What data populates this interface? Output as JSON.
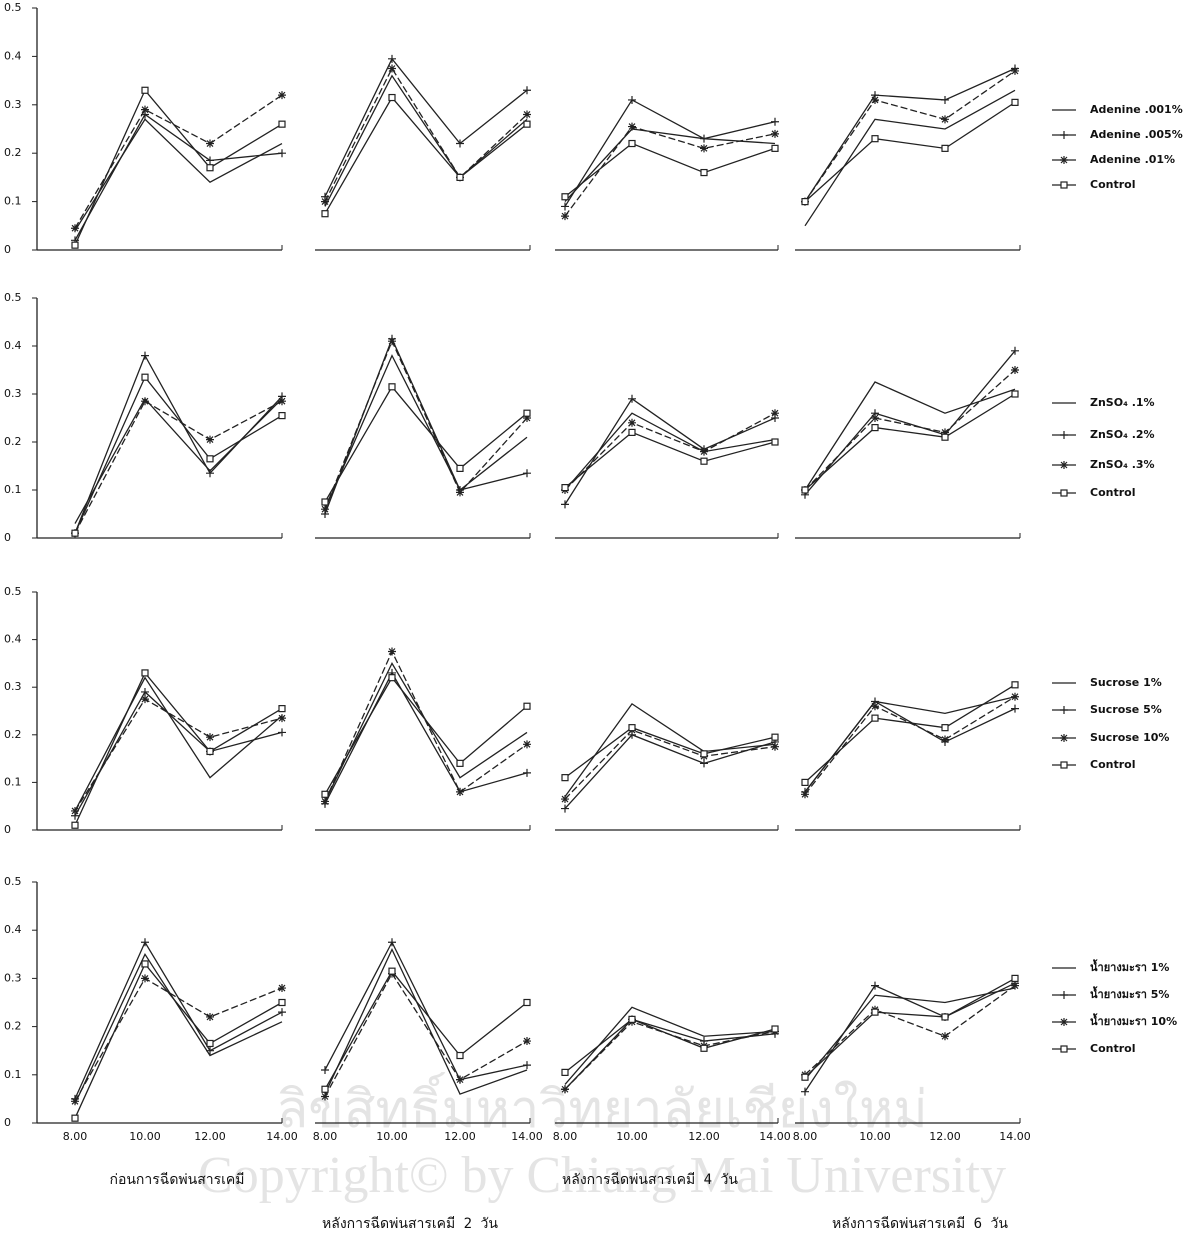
{
  "chart_data": [
    {
      "type": "line",
      "categories": [
        null,
        null,
        null,
        null
      ],
      "ylim": [
        0,
        0.5
      ],
      "yticks": [
        0,
        0.1,
        0.2,
        0.3,
        0.4,
        0.5
      ],
      "series": [
        {
          "color": "#222",
          "marker": "none",
          "values": [
            0.04,
            0.27,
            0.14,
            0.22
          ]
        },
        {
          "color": "#222",
          "marker": "plus",
          "values": [
            0.02,
            0.28,
            0.185,
            0.2
          ]
        },
        {
          "color": "#222",
          "marker": "star",
          "values": [
            0.045,
            0.29,
            0.22,
            0.32
          ]
        },
        {
          "color": "#222",
          "marker": "square",
          "values": [
            0.01,
            0.33,
            0.17,
            0.26
          ]
        }
      ]
    },
    {
      "type": "line",
      "categories": [
        null,
        null,
        null,
        null
      ],
      "ylim": [
        0,
        0.5
      ],
      "series": [
        {
          "color": "#222",
          "marker": "none",
          "values": [
            0.09,
            0.36,
            0.15,
            0.27
          ]
        },
        {
          "color": "#222",
          "marker": "plus",
          "values": [
            0.11,
            0.395,
            0.22,
            0.33
          ]
        },
        {
          "color": "#222",
          "marker": "star",
          "values": [
            0.1,
            0.375,
            0.15,
            0.28
          ]
        },
        {
          "color": "#222",
          "marker": "square",
          "values": [
            0.075,
            0.315,
            0.15,
            0.26
          ]
        }
      ]
    },
    {
      "type": "line",
      "categories": [
        null,
        null,
        null,
        null
      ],
      "ylim": [
        0,
        0.5
      ],
      "series": [
        {
          "color": "#222",
          "marker": "none",
          "values": [
            0.1,
            0.25,
            0.23,
            0.22
          ]
        },
        {
          "color": "#222",
          "marker": "plus",
          "values": [
            0.09,
            0.31,
            0.23,
            0.265
          ]
        },
        {
          "color": "#222",
          "marker": "star",
          "values": [
            0.07,
            0.255,
            0.21,
            0.24
          ]
        },
        {
          "color": "#222",
          "marker": "square",
          "values": [
            0.11,
            0.22,
            0.16,
            0.21
          ]
        }
      ]
    },
    {
      "type": "line",
      "categories": [
        null,
        null,
        null,
        null
      ],
      "ylim": [
        0,
        0.5
      ],
      "series": [
        {
          "name": "Adenine .001%",
          "color": "#222",
          "marker": "none",
          "values": [
            0.05,
            0.27,
            0.25,
            0.33
          ]
        },
        {
          "name": "Adenine .005%",
          "color": "#222",
          "marker": "plus",
          "values": [
            0.1,
            0.32,
            0.31,
            0.375
          ]
        },
        {
          "name": "Adenine .01%",
          "color": "#222",
          "marker": "star",
          "values": [
            0.1,
            0.31,
            0.27,
            0.37
          ]
        },
        {
          "name": "Control",
          "color": "#222",
          "marker": "square",
          "values": [
            0.1,
            0.23,
            0.21,
            0.305
          ]
        }
      ]
    },
    {
      "type": "line",
      "categories": [
        null,
        null,
        null,
        null
      ],
      "ylim": [
        0,
        0.5
      ],
      "yticks": [
        0,
        0.1,
        0.2,
        0.3,
        0.4,
        0.5
      ],
      "series": [
        {
          "color": "#222",
          "marker": "none",
          "values": [
            0.03,
            0.29,
            0.14,
            0.29
          ]
        },
        {
          "color": "#222",
          "marker": "plus",
          "values": [
            0.01,
            0.38,
            0.135,
            0.295
          ]
        },
        {
          "color": "#222",
          "marker": "star",
          "values": [
            0.01,
            0.285,
            0.205,
            0.285
          ]
        },
        {
          "color": "#222",
          "marker": "square",
          "values": [
            0.01,
            0.335,
            0.165,
            0.255
          ]
        }
      ]
    },
    {
      "type": "line",
      "categories": [
        null,
        null,
        null,
        null
      ],
      "ylim": [
        0,
        0.5
      ],
      "series": [
        {
          "color": "#222",
          "marker": "none",
          "values": [
            0.06,
            0.38,
            0.1,
            0.21
          ]
        },
        {
          "color": "#222",
          "marker": "plus",
          "values": [
            0.05,
            0.415,
            0.1,
            0.135
          ]
        },
        {
          "color": "#222",
          "marker": "star",
          "values": [
            0.06,
            0.41,
            0.095,
            0.25
          ]
        },
        {
          "color": "#222",
          "marker": "square",
          "values": [
            0.075,
            0.315,
            0.145,
            0.26
          ]
        }
      ]
    },
    {
      "type": "line",
      "categories": [
        null,
        null,
        null,
        null
      ],
      "ylim": [
        0,
        0.5
      ],
      "series": [
        {
          "color": "#222",
          "marker": "none",
          "values": [
            0.1,
            0.26,
            0.18,
            0.205
          ]
        },
        {
          "color": "#222",
          "marker": "plus",
          "values": [
            0.07,
            0.29,
            0.185,
            0.25
          ]
        },
        {
          "color": "#222",
          "marker": "star",
          "values": [
            0.1,
            0.24,
            0.18,
            0.26
          ]
        },
        {
          "color": "#222",
          "marker": "square",
          "values": [
            0.105,
            0.22,
            0.16,
            0.2
          ]
        }
      ]
    },
    {
      "type": "line",
      "categories": [
        null,
        null,
        null,
        null
      ],
      "ylim": [
        0,
        0.5
      ],
      "series": [
        {
          "name": "ZnSO₄ .1%",
          "color": "#222",
          "marker": "none",
          "values": [
            0.1,
            0.325,
            0.26,
            0.31
          ]
        },
        {
          "name": "ZnSO₄ .2%",
          "color": "#222",
          "marker": "plus",
          "values": [
            0.09,
            0.26,
            0.215,
            0.39
          ]
        },
        {
          "name": "ZnSO₄ .3%",
          "color": "#222",
          "marker": "star",
          "values": [
            0.1,
            0.25,
            0.22,
            0.35
          ]
        },
        {
          "name": "Control",
          "color": "#222",
          "marker": "square",
          "values": [
            0.1,
            0.23,
            0.21,
            0.3
          ]
        }
      ]
    },
    {
      "type": "line",
      "categories": [
        null,
        null,
        null,
        null
      ],
      "ylim": [
        0,
        0.5
      ],
      "yticks": [
        0,
        0.1,
        0.2,
        0.3,
        0.4,
        0.5
      ],
      "series": [
        {
          "color": "#222",
          "marker": "none",
          "values": [
            0.04,
            0.32,
            0.11,
            0.24
          ]
        },
        {
          "color": "#222",
          "marker": "plus",
          "values": [
            0.03,
            0.29,
            0.165,
            0.205
          ]
        },
        {
          "color": "#222",
          "marker": "star",
          "values": [
            0.04,
            0.275,
            0.195,
            0.235
          ]
        },
        {
          "color": "#222",
          "marker": "square",
          "values": [
            0.01,
            0.33,
            0.165,
            0.255
          ]
        }
      ]
    },
    {
      "type": "line",
      "categories": [
        null,
        null,
        null,
        null
      ],
      "ylim": [
        0,
        0.5
      ],
      "series": [
        {
          "color": "#222",
          "marker": "none",
          "values": [
            0.06,
            0.35,
            0.11,
            0.205
          ]
        },
        {
          "color": "#222",
          "marker": "plus",
          "values": [
            0.055,
            0.33,
            0.08,
            0.12
          ]
        },
        {
          "color": "#222",
          "marker": "star",
          "values": [
            0.06,
            0.375,
            0.08,
            0.18
          ]
        },
        {
          "color": "#222",
          "marker": "square",
          "values": [
            0.075,
            0.32,
            0.14,
            0.26
          ]
        }
      ]
    },
    {
      "type": "line",
      "categories": [
        null,
        null,
        null,
        null
      ],
      "ylim": [
        0,
        0.5
      ],
      "series": [
        {
          "color": "#222",
          "marker": "none",
          "values": [
            0.07,
            0.265,
            0.165,
            0.18
          ]
        },
        {
          "color": "#222",
          "marker": "plus",
          "values": [
            0.045,
            0.2,
            0.14,
            0.185
          ]
        },
        {
          "color": "#222",
          "marker": "star",
          "values": [
            0.065,
            0.21,
            0.155,
            0.175
          ]
        },
        {
          "color": "#222",
          "marker": "square",
          "values": [
            0.11,
            0.215,
            0.16,
            0.195
          ]
        }
      ]
    },
    {
      "type": "line",
      "categories": [
        null,
        null,
        null,
        null
      ],
      "ylim": [
        0,
        0.5
      ],
      "series": [
        {
          "name": "Sucrose 1%",
          "color": "#222",
          "marker": "none",
          "values": [
            0.08,
            0.27,
            0.245,
            0.28
          ]
        },
        {
          "name": "Sucrose 5%",
          "color": "#222",
          "marker": "plus",
          "values": [
            0.08,
            0.27,
            0.185,
            0.255
          ]
        },
        {
          "name": "Sucrose 10%",
          "color": "#222",
          "marker": "star",
          "values": [
            0.075,
            0.26,
            0.19,
            0.28
          ]
        },
        {
          "name": "Control",
          "color": "#222",
          "marker": "square",
          "values": [
            0.1,
            0.235,
            0.215,
            0.305
          ]
        }
      ]
    },
    {
      "type": "line",
      "categories": [
        "8.00",
        "10.00",
        "12.00",
        "14.00"
      ],
      "ylim": [
        0,
        0.5
      ],
      "yticks": [
        0,
        0.1,
        0.2,
        0.3,
        0.4,
        0.5
      ],
      "series": [
        {
          "color": "#222",
          "marker": "none",
          "values": [
            0.04,
            0.35,
            0.14,
            0.21
          ]
        },
        {
          "color": "#222",
          "marker": "plus",
          "values": [
            0.05,
            0.375,
            0.15,
            0.23
          ]
        },
        {
          "color": "#222",
          "marker": "star",
          "values": [
            0.045,
            0.3,
            0.22,
            0.28
          ]
        },
        {
          "color": "#222",
          "marker": "square",
          "values": [
            0.01,
            0.33,
            0.165,
            0.25
          ]
        }
      ]
    },
    {
      "type": "line",
      "categories": [
        "8.00",
        "10.00",
        "12.00",
        "14.00"
      ],
      "ylim": [
        0,
        0.5
      ],
      "series": [
        {
          "color": "#222",
          "marker": "none",
          "values": [
            0.06,
            0.36,
            0.06,
            0.11
          ]
        },
        {
          "color": "#222",
          "marker": "plus",
          "values": [
            0.11,
            0.375,
            0.09,
            0.12
          ]
        },
        {
          "color": "#222",
          "marker": "star",
          "values": [
            0.055,
            0.31,
            0.09,
            0.17
          ]
        },
        {
          "color": "#222",
          "marker": "square",
          "values": [
            0.07,
            0.315,
            0.14,
            0.25
          ]
        }
      ]
    },
    {
      "type": "line",
      "categories": [
        "8.00",
        "10.00",
        "12.00",
        "14.00"
      ],
      "ylim": [
        0,
        0.5
      ],
      "series": [
        {
          "color": "#222",
          "marker": "none",
          "values": [
            0.08,
            0.24,
            0.18,
            0.19
          ]
        },
        {
          "color": "#222",
          "marker": "plus",
          "values": [
            0.07,
            0.215,
            0.17,
            0.185
          ]
        },
        {
          "color": "#222",
          "marker": "star",
          "values": [
            0.07,
            0.21,
            0.16,
            0.19
          ]
        },
        {
          "color": "#222",
          "marker": "square",
          "values": [
            0.105,
            0.215,
            0.155,
            0.195
          ]
        }
      ]
    },
    {
      "type": "line",
      "categories": [
        "8.00",
        "10.00",
        "12.00",
        "14.00"
      ],
      "ylim": [
        0,
        0.5
      ],
      "series": [
        {
          "name": "น้ำยางมะรา 1%",
          "color": "#222",
          "marker": "none",
          "values": [
            0.09,
            0.265,
            0.25,
            0.28
          ]
        },
        {
          "name": "น้ำยางมะรา 5%",
          "color": "#222",
          "marker": "plus",
          "values": [
            0.065,
            0.285,
            0.22,
            0.29
          ]
        },
        {
          "name": "น้ำยางมะรา 10%",
          "color": "#222",
          "marker": "star",
          "values": [
            0.1,
            0.235,
            0.18,
            0.285
          ]
        },
        {
          "name": "Control",
          "color": "#222",
          "marker": "square",
          "values": [
            0.095,
            0.23,
            0.22,
            0.3
          ]
        }
      ]
    }
  ],
  "captions": [
    "ก่อนการฉีดพ่นสารเคมี",
    "หลังการฉีดพ่นสารเคมี 2 วัน",
    "หลังการฉีดพ่นสารเคมี 4 วัน",
    "หลังการฉีดพ่นสารเคมี 6 วัน"
  ],
  "watermark": [
    "ลิขสิทธิ์มหาวิทยาลัยเชียงใหม่",
    "Copyright© by Chiang Mai University"
  ]
}
